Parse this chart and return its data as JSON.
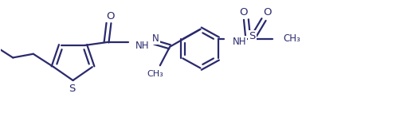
{
  "bg_color": "#ffffff",
  "line_color": "#2a2a6e",
  "line_width": 1.6,
  "font_size": 8.5,
  "fig_width": 5.17,
  "fig_height": 1.42,
  "dpi": 100,
  "xlim": [
    0,
    10.5
  ],
  "ylim": [
    0,
    3.0
  ]
}
